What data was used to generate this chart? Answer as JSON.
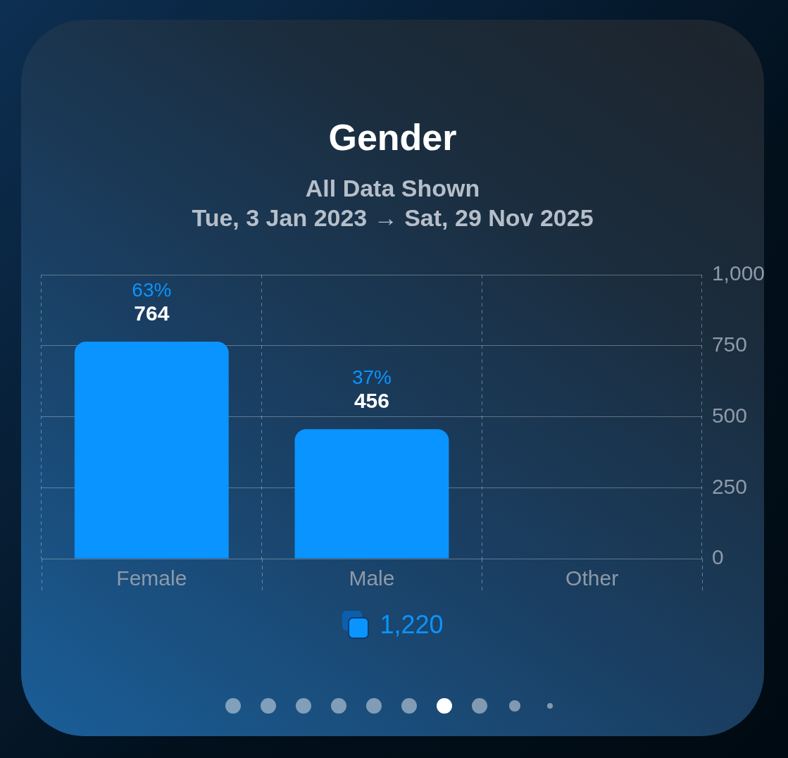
{
  "chart_data": {
    "type": "bar",
    "title": "Gender",
    "subtitle": "All Data Shown\nTue, 3 Jan 2023 → Sat, 29 Nov 2025",
    "categories": [
      "Female",
      "Male",
      "Other"
    ],
    "values": [
      764,
      456,
      0
    ],
    "value_labels": [
      "764",
      "456",
      null
    ],
    "color": "#0a94ff",
    "ylim": [
      0,
      1000
    ],
    "yticks": [
      0,
      250,
      500,
      750,
      {
        "value": 1000,
        "label": "1,000"
      }
    ],
    "grid": true,
    "annotations": [
      {
        "text": "63%",
        "x": "Female",
        "y": 764
      },
      {
        "text": "37%",
        "x": "Male",
        "y": 456
      },
      "1,220"
    ]
  }
}
